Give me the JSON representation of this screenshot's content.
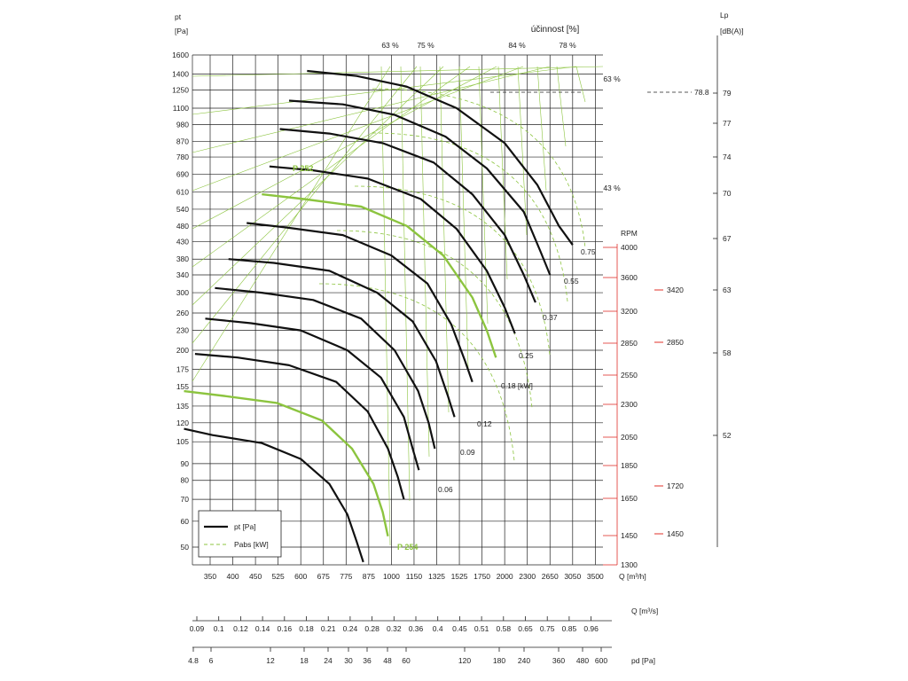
{
  "colors": {
    "curve": "#111111",
    "selected": "#8cc43f",
    "efficiency": "#8cc43f",
    "rpm_marker": "#e0302a",
    "grid": "#222222"
  },
  "chart_data": {
    "type": "line",
    "title": "",
    "yaxis": {
      "label": "pt",
      "unit": "[Pa]",
      "scale": "log",
      "ticks": [
        1600,
        1400,
        1250,
        1100,
        980,
        870,
        780,
        690,
        610,
        540,
        480,
        430,
        380,
        340,
        300,
        260,
        230,
        200,
        175,
        155,
        135,
        120,
        105,
        90,
        80,
        70,
        60,
        50
      ]
    },
    "xaxis": {
      "label": "Q [m³/h]",
      "scale": "log",
      "ticks": [
        350,
        400,
        450,
        525,
        600,
        675,
        775,
        875,
        1000,
        1150,
        1325,
        1525,
        1750,
        2000,
        2300,
        2650,
        3050,
        3500
      ]
    },
    "xaxis_q_m3s": {
      "label": "Q  [m³/s]",
      "ticks": [
        "0.09",
        "0.1",
        "0.12",
        "0.14",
        "0.16",
        "0.18",
        "0.21",
        "0.24",
        "0.28",
        "0.32",
        "0.36",
        "0.4",
        "0.45",
        "0.51",
        "0.58",
        "0.65",
        "0.75",
        "0.85",
        "0.96"
      ]
    },
    "xaxis_pd": {
      "label": "pd  [Pa]",
      "ticks": [
        "4.8",
        "6",
        "12",
        "18",
        "24",
        "30",
        "36",
        "48",
        "60",
        "120",
        "180",
        "240",
        "360",
        "480",
        "600"
      ]
    },
    "efficiency_label": "účinnost [%]",
    "efficiency_lines": [
      "63 %",
      "75 %",
      "84 %",
      "78 %",
      "63 %",
      "43 %"
    ],
    "rpm_axis": {
      "label": "RPM",
      "ticks": [
        "4000",
        "3600",
        "3200",
        "2850",
        "2550",
        "2300",
        "2050",
        "1850",
        "1650",
        "1450",
        "1300"
      ]
    },
    "rpm_markers": [
      "3420",
      "2850",
      "1720",
      "1450"
    ],
    "lp_axis": {
      "label": "Lp",
      "unit": "[dB(A)]",
      "ticks": [
        "79",
        "77",
        "74",
        "70",
        "67",
        "63",
        "58",
        "52"
      ],
      "marker": "78.8"
    },
    "power_labels": [
      "0.75",
      "0.55",
      "0.37",
      "0.25",
      "0.18  [kW]",
      "0.12",
      "0.09",
      "0.06"
    ],
    "point_labels": {
      "top": "P 252",
      "bottom": "P 254"
    },
    "legend": {
      "curve": "pt [Pa]",
      "power": "Pabs [kW]"
    },
    "series": [
      {
        "name": "",
        "x": [
          620,
          820,
          1100,
          1500,
          2000,
          2450,
          2800,
          3050
        ],
        "y": [
          1430,
          1380,
          1280,
          1100,
          860,
          640,
          480,
          420
        ]
      },
      {
        "name": "",
        "x": [
          560,
          760,
          1020,
          1400,
          1800,
          2250,
          2500,
          2650
        ],
        "y": [
          1160,
          1130,
          1050,
          900,
          720,
          530,
          400,
          340
        ]
      },
      {
        "name": "",
        "x": [
          530,
          700,
          950,
          1300,
          1650,
          2000,
          2250,
          2420
        ],
        "y": [
          950,
          920,
          860,
          750,
          600,
          450,
          340,
          280
        ]
      },
      {
        "name": "",
        "x": [
          495,
          640,
          870,
          1200,
          1500,
          1800,
          2000,
          2130
        ],
        "y": [
          730,
          710,
          670,
          580,
          470,
          350,
          270,
          225
        ]
      },
      {
        "name": "",
        "x": [
          470,
          610,
          840,
          1100,
          1380,
          1650,
          1800,
          1900
        ],
        "y": [
          600,
          580,
          550,
          480,
          390,
          290,
          230,
          190
        ]
      },
      {
        "name": "",
        "x": [
          430,
          550,
          760,
          1000,
          1250,
          1450,
          1580,
          1650
        ],
        "y": [
          490,
          475,
          450,
          390,
          320,
          240,
          185,
          160
        ]
      },
      {
        "name": "",
        "x": [
          390,
          510,
          700,
          920,
          1140,
          1320,
          1420,
          1480
        ],
        "y": [
          380,
          370,
          350,
          300,
          245,
          185,
          145,
          125
        ]
      },
      {
        "name": "",
        "x": [
          360,
          470,
          640,
          840,
          1020,
          1180,
          1260,
          1310
        ],
        "y": [
          310,
          300,
          285,
          250,
          200,
          150,
          120,
          100
        ]
      },
      {
        "name": "",
        "x": [
          340,
          440,
          600,
          780,
          940,
          1080,
          1140,
          1185
        ],
        "y": [
          250,
          242,
          230,
          200,
          165,
          125,
          100,
          86
        ]
      },
      {
        "name": "",
        "x": [
          320,
          410,
          560,
          730,
          870,
          980,
          1040,
          1080
        ],
        "y": [
          195,
          190,
          180,
          160,
          130,
          100,
          82,
          70
        ]
      },
      {
        "name": "",
        "x": [
          300,
          380,
          520,
          670,
          800,
          900,
          950,
          980
        ],
        "y": [
          150,
          145,
          138,
          122,
          100,
          78,
          64,
          54
        ]
      },
      {
        "name": "",
        "x": [
          300,
          355,
          470,
          600,
          700,
          780,
          820,
          850
        ],
        "y": [
          115,
          110,
          104,
          93,
          78,
          63,
          52,
          45
        ]
      }
    ]
  }
}
